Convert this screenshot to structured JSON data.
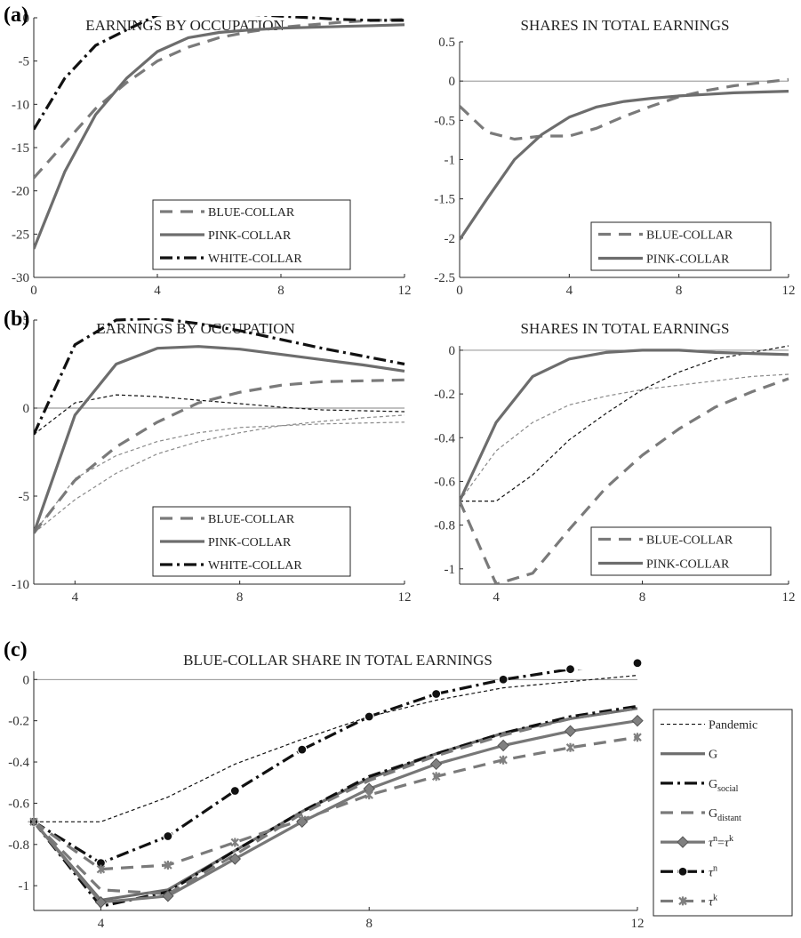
{
  "chart_data": [
    {
      "type": "line",
      "panel_label": "(a)",
      "title": "EARNINGS BY OCCUPATION",
      "xlim": [
        0,
        12
      ],
      "ylim": [
        -30,
        0
      ],
      "xticks": [
        0,
        4,
        8,
        12
      ],
      "yticks": [
        -30,
        -25,
        -20,
        -15,
        -10,
        -5,
        0
      ],
      "x": [
        0,
        1,
        2,
        3,
        4,
        5,
        6,
        7,
        8,
        9,
        10,
        11,
        12
      ],
      "legend_position": "bottom-right",
      "series": [
        {
          "name": "BLUE-COLLAR",
          "style": "blue",
          "values": [
            -18.5,
            -14.5,
            -10.5,
            -7.5,
            -5.0,
            -3.4,
            -2.3,
            -1.6,
            -1.1,
            -0.8,
            -0.5,
            -0.3,
            -0.2
          ]
        },
        {
          "name": "PINK-COLLAR",
          "style": "pink",
          "values": [
            -26.7,
            -17.8,
            -11.2,
            -7.0,
            -3.9,
            -2.3,
            -1.7,
            -1.4,
            -1.2,
            -1.1,
            -1.0,
            -0.9,
            -0.8
          ]
        },
        {
          "name": "WHITE-COLLAR",
          "style": "white",
          "values": [
            -12.9,
            -7.0,
            -3.2,
            -1.4,
            0.3,
            0.7,
            0.6,
            0.4,
            0.2,
            0.0,
            -0.2,
            -0.3,
            -0.3
          ]
        }
      ]
    },
    {
      "type": "line",
      "panel_label": "",
      "title": "SHARES IN TOTAL EARNINGS",
      "xlim": [
        0,
        12
      ],
      "ylim": [
        -2.5,
        0.5
      ],
      "xticks": [
        0,
        4,
        8,
        12
      ],
      "yticks": [
        -2.5,
        -2,
        -1.5,
        -1,
        -0.5,
        0,
        0.5
      ],
      "x": [
        0,
        1,
        2,
        3,
        4,
        5,
        6,
        7,
        8,
        9,
        10,
        11,
        12
      ],
      "legend_position": "bottom-right",
      "series": [
        {
          "name": "BLUE-COLLAR",
          "style": "blue",
          "values": [
            -0.32,
            -0.65,
            -0.74,
            -0.7,
            -0.7,
            -0.6,
            -0.45,
            -0.32,
            -0.2,
            -0.12,
            -0.06,
            -0.02,
            0.02
          ]
        },
        {
          "name": "PINK-COLLAR",
          "style": "pink",
          "values": [
            -2.02,
            -1.5,
            -1.0,
            -0.68,
            -0.46,
            -0.33,
            -0.26,
            -0.22,
            -0.19,
            -0.17,
            -0.15,
            -0.14,
            -0.13
          ]
        }
      ]
    },
    {
      "type": "line",
      "panel_label": "(b)",
      "title": "EARNINGS BY OCCUPATION",
      "xlim": [
        3,
        12
      ],
      "ylim": [
        -10,
        5
      ],
      "xticks": [
        4,
        8,
        12
      ],
      "yticks": [
        -10,
        -5,
        0,
        5
      ],
      "x": [
        3,
        4,
        5,
        6,
        7,
        8,
        9,
        10,
        11,
        12
      ],
      "legend_position": "bottom-right",
      "series": [
        {
          "name": "BLUE-COLLAR",
          "style": "blue",
          "values": [
            -7.1,
            -4.1,
            -2.2,
            -0.8,
            0.3,
            0.9,
            1.3,
            1.5,
            1.55,
            1.6
          ]
        },
        {
          "name": "PINK-COLLAR",
          "style": "pink",
          "values": [
            -7.1,
            -0.4,
            2.5,
            3.4,
            3.5,
            3.35,
            3.05,
            2.75,
            2.45,
            2.1
          ]
        },
        {
          "name": "WHITE-COLLAR",
          "style": "white",
          "values": [
            -1.5,
            3.6,
            5.0,
            5.1,
            4.8,
            4.4,
            3.9,
            3.4,
            2.95,
            2.5
          ]
        },
        {
          "name": "",
          "style": "thin-black",
          "values": [
            -1.5,
            0.3,
            0.75,
            0.65,
            0.45,
            0.25,
            0.05,
            -0.1,
            -0.15,
            -0.2
          ]
        },
        {
          "name": "",
          "style": "thin-gray",
          "values": [
            -7.1,
            -4.0,
            -2.7,
            -1.9,
            -1.4,
            -1.1,
            -1.0,
            -0.9,
            -0.85,
            -0.8
          ]
        },
        {
          "name": "",
          "style": "thin-gray",
          "values": [
            -7.1,
            -5.2,
            -3.7,
            -2.6,
            -1.9,
            -1.4,
            -1.0,
            -0.75,
            -0.55,
            -0.4
          ]
        }
      ]
    },
    {
      "type": "line",
      "panel_label": "",
      "title": "SHARES IN TOTAL EARNINGS",
      "xlim": [
        3,
        12
      ],
      "ylim": [
        -1.07,
        0.02
      ],
      "xticks": [
        4,
        8,
        12
      ],
      "yticks": [
        -1,
        -0.8,
        -0.6,
        -0.4,
        -0.2,
        0
      ],
      "x": [
        3,
        4,
        5,
        6,
        7,
        8,
        9,
        10,
        11,
        12
      ],
      "legend_position": "bottom-right",
      "series": [
        {
          "name": "BLUE-COLLAR",
          "style": "blue",
          "values": [
            -0.69,
            -1.07,
            -1.02,
            -0.82,
            -0.63,
            -0.48,
            -0.36,
            -0.26,
            -0.19,
            -0.13
          ]
        },
        {
          "name": "PINK-COLLAR",
          "style": "pink",
          "values": [
            -0.69,
            -0.33,
            -0.12,
            -0.04,
            -0.01,
            0.0,
            0.0,
            -0.01,
            -0.015,
            -0.02
          ]
        },
        {
          "name": "",
          "style": "thin-black",
          "values": [
            -0.69,
            -0.69,
            -0.57,
            -0.41,
            -0.29,
            -0.18,
            -0.1,
            -0.04,
            -0.01,
            0.02
          ]
        },
        {
          "name": "",
          "style": "thin-gray",
          "values": [
            -0.69,
            -0.46,
            -0.33,
            -0.25,
            -0.21,
            -0.18,
            -0.16,
            -0.14,
            -0.12,
            -0.11
          ]
        }
      ]
    },
    {
      "type": "line",
      "panel_label": "(c)",
      "title": "BLUE-COLLAR SHARE IN TOTAL EARNINGS",
      "xlim": [
        3,
        12
      ],
      "ylim": [
        -1.12,
        0.04
      ],
      "xticks": [
        4,
        8,
        12
      ],
      "yticks": [
        -1,
        -0.8,
        -0.6,
        -0.4,
        -0.2,
        0
      ],
      "x": [
        3,
        4,
        5,
        6,
        7,
        8,
        9,
        10,
        11,
        12
      ],
      "legend_position": "right, outside",
      "series": [
        {
          "name": "Pandemic",
          "sub": "",
          "style": "pandemic",
          "values": [
            -0.69,
            -0.69,
            -0.57,
            -0.41,
            -0.29,
            -0.18,
            -0.1,
            -0.04,
            -0.01,
            0.02
          ]
        },
        {
          "name": "G",
          "sub": "",
          "style": "G",
          "values": [
            -0.69,
            -1.07,
            -1.02,
            -0.83,
            -0.64,
            -0.48,
            -0.36,
            -0.26,
            -0.19,
            -0.14
          ]
        },
        {
          "name": "G",
          "sub": "social",
          "style": "Gsocial",
          "values": [
            -0.69,
            -1.1,
            -1.03,
            -0.83,
            -0.64,
            -0.47,
            -0.36,
            -0.26,
            -0.18,
            -0.13
          ]
        },
        {
          "name": "G",
          "sub": "distant",
          "style": "Gdistant",
          "values": [
            -0.69,
            -1.02,
            -1.04,
            -0.85,
            -0.65,
            -0.49,
            -0.37,
            -0.27,
            -0.19,
            -0.14
          ]
        },
        {
          "name": "τn=τk",
          "sub": "",
          "style": "taunk",
          "values": [
            -0.69,
            -1.08,
            -1.05,
            -0.87,
            -0.69,
            -0.53,
            -0.41,
            -0.32,
            -0.25,
            -0.2
          ]
        },
        {
          "name": "τn",
          "sub": "",
          "style": "taun",
          "values": [
            -0.69,
            -0.89,
            -0.76,
            -0.54,
            -0.34,
            -0.18,
            -0.07,
            0.0,
            0.05,
            0.08
          ]
        },
        {
          "name": "τk",
          "sub": "",
          "style": "tauk",
          "values": [
            -0.69,
            -0.92,
            -0.9,
            -0.79,
            -0.68,
            -0.56,
            -0.47,
            -0.39,
            -0.33,
            -0.28
          ]
        }
      ]
    }
  ]
}
